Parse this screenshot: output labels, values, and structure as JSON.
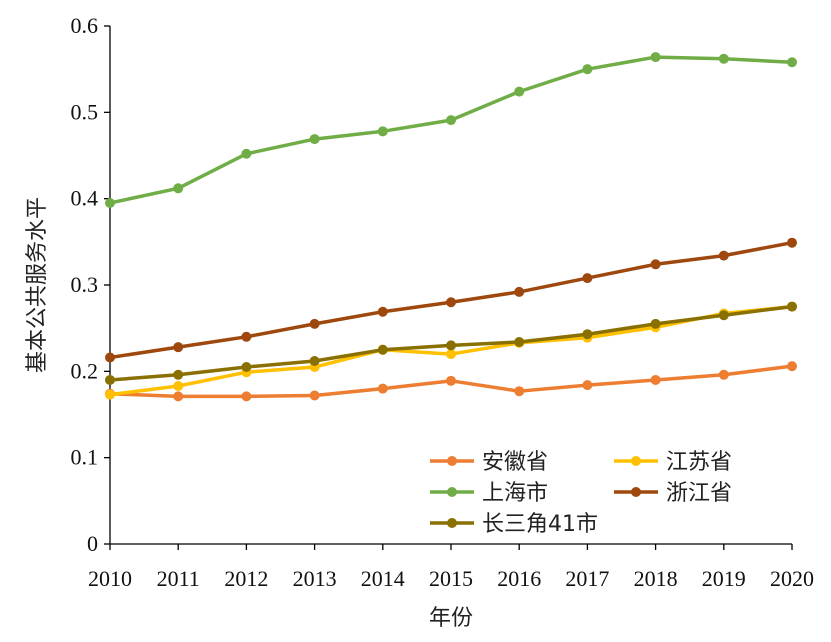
{
  "chart_data": {
    "type": "line",
    "xlabel": "年份",
    "ylabel": "基本公共服务水平",
    "x": [
      "2010",
      "2011",
      "2012",
      "2013",
      "2014",
      "2015",
      "2016",
      "2017",
      "2018",
      "2019",
      "2020"
    ],
    "ylim": [
      0,
      0.6
    ],
    "yticks": [
      "0",
      "0.1",
      "0.2",
      "0.3",
      "0.4",
      "0.5",
      "0.6"
    ],
    "legend_position": "bottom-right",
    "series": [
      {
        "name": "安徽省",
        "color": "#ed7d31",
        "values": [
          0.174,
          0.171,
          0.171,
          0.172,
          0.18,
          0.189,
          0.177,
          0.184,
          0.19,
          0.196,
          0.206
        ]
      },
      {
        "name": "江苏省",
        "color": "#ffc000",
        "values": [
          0.173,
          0.183,
          0.199,
          0.205,
          0.225,
          0.22,
          0.233,
          0.239,
          0.251,
          0.267,
          0.275
        ]
      },
      {
        "name": "上海市",
        "color": "#70ad47",
        "values": [
          0.395,
          0.412,
          0.452,
          0.469,
          0.478,
          0.491,
          0.524,
          0.55,
          0.564,
          0.562,
          0.558
        ]
      },
      {
        "name": "浙江省",
        "color": "#9e480e",
        "values": [
          0.216,
          0.228,
          0.24,
          0.255,
          0.269,
          0.28,
          0.292,
          0.308,
          0.324,
          0.334,
          0.349
        ]
      },
      {
        "name": "长三角41市",
        "color": "#8a7000",
        "values": [
          0.19,
          0.196,
          0.205,
          0.212,
          0.225,
          0.23,
          0.234,
          0.243,
          0.255,
          0.265,
          0.275
        ]
      }
    ]
  }
}
